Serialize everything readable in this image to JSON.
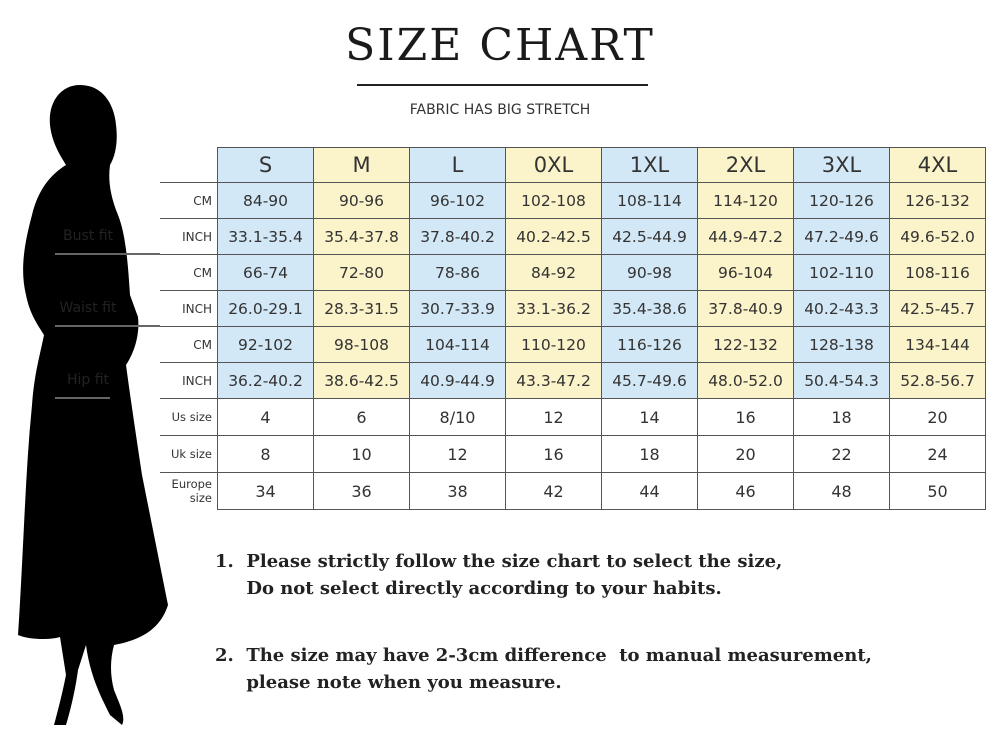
{
  "title": "SIZE CHART",
  "subtitle": "FABRIC HAS BIG STRETCH",
  "colors": {
    "blue": "#d3e8f6",
    "yellow": "#fbf3c9"
  },
  "sizes": [
    "S",
    "M",
    "L",
    "0XL",
    "1XL",
    "2XL",
    "3XL",
    "4XL"
  ],
  "measure_groups": [
    {
      "label": "Bust fit",
      "rows": [
        {
          "unit": "CM",
          "values": [
            "84-90",
            "90-96",
            "96-102",
            "102-108",
            "108-114",
            "114-120",
            "120-126",
            "126-132"
          ]
        },
        {
          "unit": "INCH",
          "values": [
            "33.1-35.4",
            "35.4-37.8",
            "37.8-40.2",
            "40.2-42.5",
            "42.5-44.9",
            "44.9-47.2",
            "47.2-49.6",
            "49.6-52.0"
          ]
        }
      ]
    },
    {
      "label": "Waist fit",
      "rows": [
        {
          "unit": "CM",
          "values": [
            "66-74",
            "72-80",
            "78-86",
            "84-92",
            "90-98",
            "96-104",
            "102-110",
            "108-116"
          ]
        },
        {
          "unit": "INCH",
          "values": [
            "26.0-29.1",
            "28.3-31.5",
            "30.7-33.9",
            "33.1-36.2",
            "35.4-38.6",
            "37.8-40.9",
            "40.2-43.3",
            "42.5-45.7"
          ]
        }
      ]
    },
    {
      "label": "Hip fit",
      "rows": [
        {
          "unit": "CM",
          "values": [
            "92-102",
            "98-108",
            "104-114",
            "110-120",
            "116-126",
            "122-132",
            "128-138",
            "134-144"
          ]
        },
        {
          "unit": "INCH",
          "values": [
            "36.2-40.2",
            "38.6-42.5",
            "40.9-44.9",
            "43.3-47.2",
            "45.7-49.6",
            "48.0-52.0",
            "50.4-54.3",
            "52.8-56.7"
          ]
        }
      ]
    }
  ],
  "size_conversions": [
    {
      "label": "Us size",
      "values": [
        "4",
        "6",
        "8/10",
        "12",
        "14",
        "16",
        "18",
        "20"
      ]
    },
    {
      "label": "Uk size",
      "values": [
        "8",
        "10",
        "12",
        "16",
        "18",
        "20",
        "22",
        "24"
      ]
    },
    {
      "label": "Europe size",
      "values": [
        "34",
        "36",
        "38",
        "42",
        "44",
        "46",
        "48",
        "50"
      ]
    }
  ],
  "notes": [
    {
      "line1": "1.  Please strictly follow the size chart to select the size,",
      "line2": "     Do not select directly according to your habits."
    },
    {
      "line1": "2.  The size may have 2-3cm difference  to manual measurement,",
      "line2": "     please note when you measure."
    }
  ]
}
